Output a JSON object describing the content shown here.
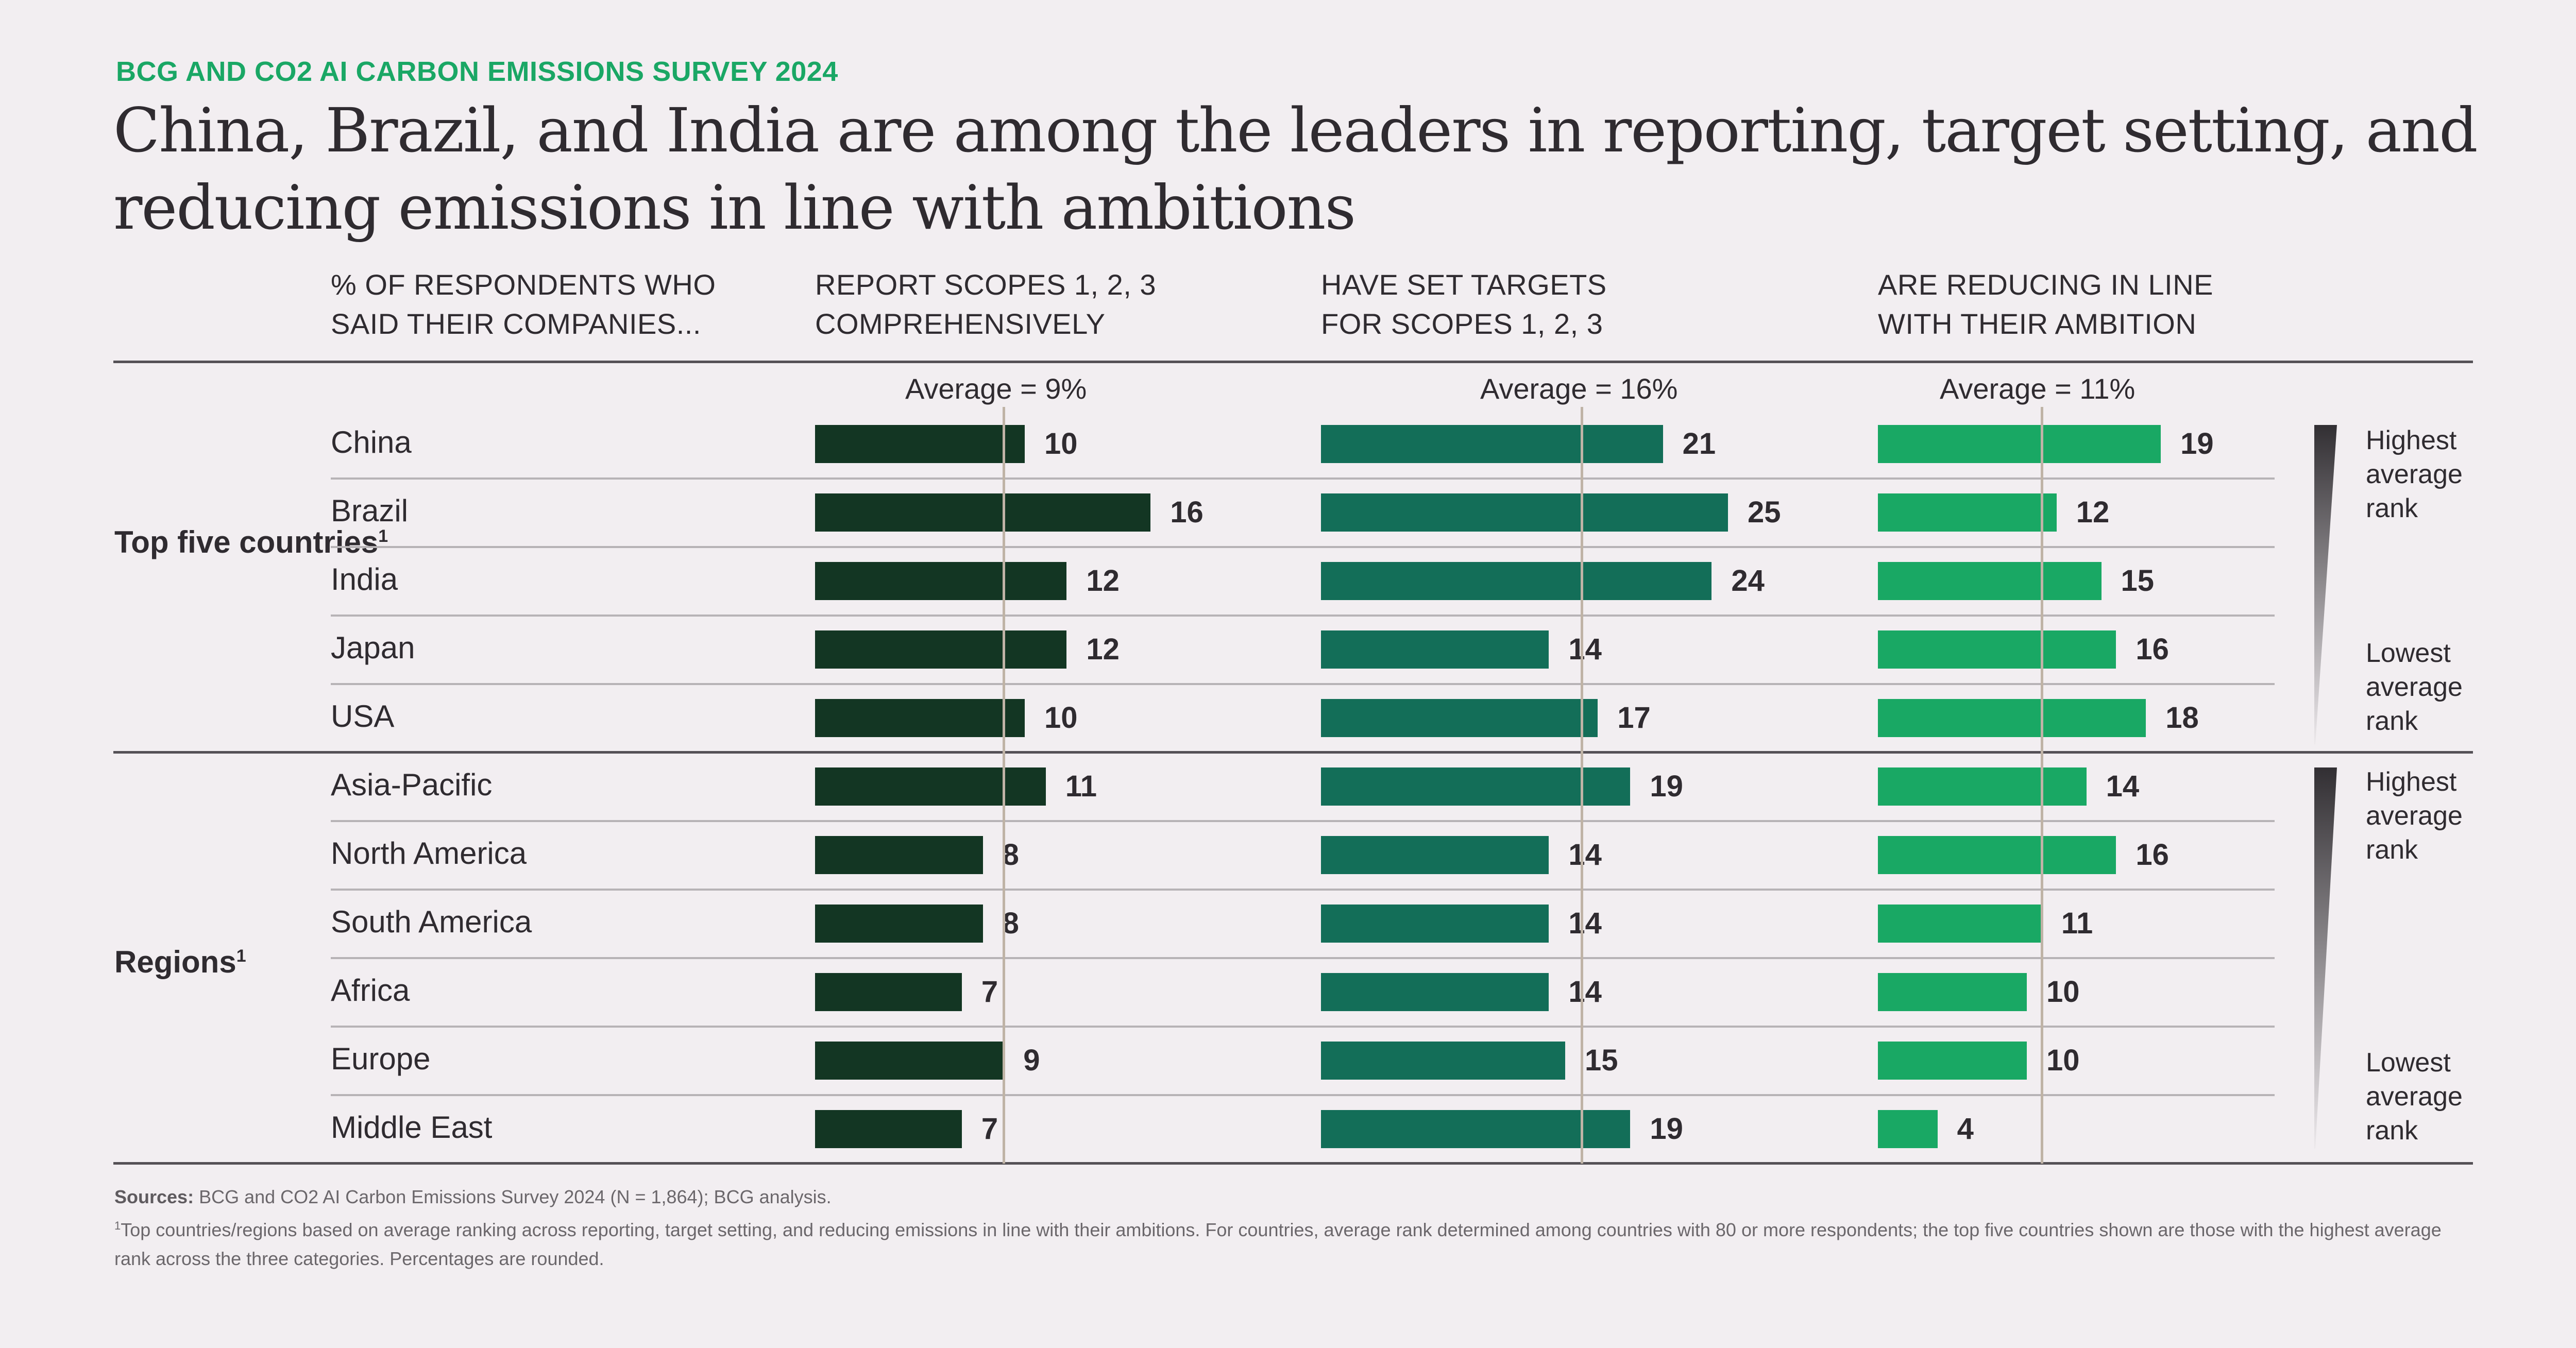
{
  "kicker": "BCG AND CO2 AI CARBON EMISSIONS SURVEY 2024",
  "title": "China, Brazil, and India are among the leaders in reporting, target setting, and reducing emissions in line with ambitions",
  "header": {
    "row_header": "% OF RESPONDENTS WHO\nSAID THEIR COMPANIES...",
    "columns": [
      {
        "label": "REPORT SCOPES 1, 2, 3\nCOMPREHENSIVELY",
        "average_label": "Average = 9%"
      },
      {
        "label": "HAVE SET TARGETS\nFOR SCOPES 1, 2, 3",
        "average_label": "Average = 16%"
      },
      {
        "label": "ARE REDUCING IN LINE\nWITH THEIR AMBITION",
        "average_label": "Average = 11%"
      }
    ]
  },
  "groups": [
    {
      "label": "Top five countries",
      "footnote_mark": "1"
    },
    {
      "label": "Regions",
      "footnote_mark": "1"
    }
  ],
  "rank_legend": {
    "highest": "Highest\naverage\nrank",
    "lowest": "Lowest\naverage\nrank"
  },
  "colors": {
    "background": "#f2eef1",
    "kicker": "#1aa765",
    "series_report": "#133623",
    "series_targets": "#136e58",
    "series_reducing": "#19a864",
    "average_line": "#bfb3a6"
  },
  "footer": {
    "sources_label": "Sources:",
    "sources_text": "BCG and CO2 AI Carbon Emissions Survey 2024 (N = 1,864); BCG analysis.",
    "note_mark": "1",
    "note_text": "Top countries/regions based on average ranking across reporting, target setting, and reducing emissions in line with their ambitions. For countries, average rank determined among countries with 80 or more respondents; the top five countries shown are those with the highest average rank across the three categories. Percentages are rounded."
  },
  "chart_data": {
    "type": "bar",
    "orientation": "horizontal",
    "title": "China, Brazil, and India are among the leaders in reporting, target setting, and reducing emissions in line with ambitions",
    "xlabel": "% of respondents",
    "ylabel": "",
    "categories": [
      "China",
      "Brazil",
      "India",
      "Japan",
      "USA",
      "Asia-Pacific",
      "North America",
      "South America",
      "Africa",
      "Europe",
      "Middle East"
    ],
    "category_groups": [
      {
        "name": "Top five countries",
        "members": [
          "China",
          "Brazil",
          "India",
          "Japan",
          "USA"
        ]
      },
      {
        "name": "Regions",
        "members": [
          "Asia-Pacific",
          "North America",
          "South America",
          "Africa",
          "Europe",
          "Middle East"
        ]
      }
    ],
    "series": [
      {
        "name": "Report scopes 1, 2, 3 comprehensively",
        "average": 9,
        "values": [
          10,
          16,
          12,
          12,
          10,
          11,
          8,
          8,
          7,
          9,
          7
        ]
      },
      {
        "name": "Have set targets for scopes 1, 2, 3",
        "average": 16,
        "values": [
          21,
          25,
          24,
          14,
          17,
          19,
          14,
          14,
          14,
          15,
          19
        ]
      },
      {
        "name": "Are reducing in line with their ambition",
        "average": 11,
        "values": [
          19,
          12,
          15,
          16,
          18,
          14,
          16,
          11,
          10,
          10,
          4
        ]
      }
    ],
    "grid": false,
    "legend": "none"
  }
}
